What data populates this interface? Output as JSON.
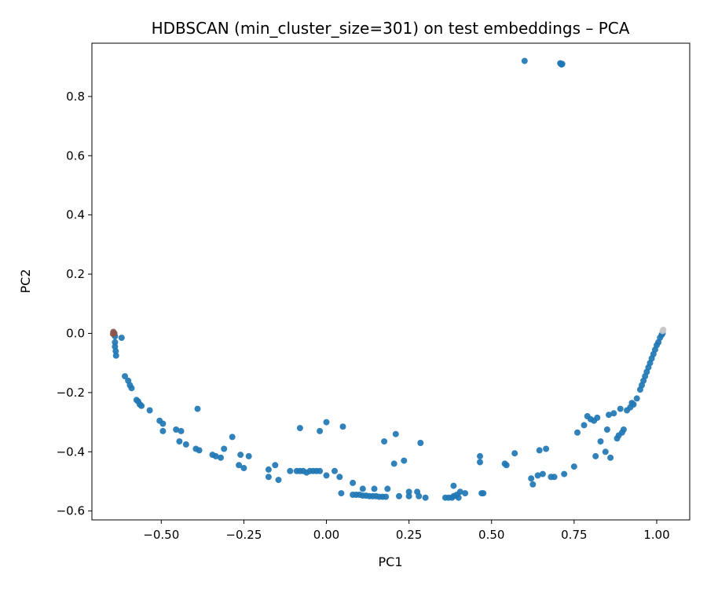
{
  "chart_data": {
    "type": "scatter",
    "title": "HDBSCAN (min_cluster_size=301) on test embeddings – PCA",
    "xlabel": "PC1",
    "ylabel": "PC2",
    "xlim": [
      -0.71,
      1.1
    ],
    "ylim": [
      -0.63,
      0.98
    ],
    "xticks": [
      -0.5,
      -0.25,
      0.0,
      0.25,
      0.5,
      0.75,
      1.0
    ],
    "xtick_labels": [
      "−0.50",
      "−0.25",
      "0.00",
      "0.25",
      "0.50",
      "0.75",
      "1.00"
    ],
    "yticks": [
      -0.6,
      -0.4,
      -0.2,
      0.0,
      0.2,
      0.4,
      0.6,
      0.8
    ],
    "ytick_labels": [
      "−0.6",
      "−0.4",
      "−0.2",
      "0.0",
      "0.2",
      "0.4",
      "0.6",
      "0.8"
    ],
    "grid": false,
    "legend": false,
    "series": [
      {
        "color": "#1f77b4",
        "points": [
          [
            0.6,
            0.92
          ],
          [
            0.71,
            0.91
          ],
          [
            0.712,
            0.908
          ],
          [
            0.708,
            0.912
          ],
          [
            0.714,
            0.91
          ],
          [
            -0.64,
            -0.01
          ],
          [
            -0.64,
            -0.03
          ],
          [
            -0.64,
            -0.045
          ],
          [
            -0.638,
            -0.06
          ],
          [
            -0.637,
            -0.075
          ],
          [
            -0.62,
            -0.015
          ],
          [
            -0.61,
            -0.145
          ],
          [
            -0.6,
            -0.16
          ],
          [
            -0.595,
            -0.175
          ],
          [
            -0.59,
            -0.185
          ],
          [
            -0.575,
            -0.225
          ],
          [
            -0.57,
            -0.23
          ],
          [
            -0.565,
            -0.24
          ],
          [
            -0.56,
            -0.245
          ],
          [
            -0.535,
            -0.26
          ],
          [
            -0.505,
            -0.295
          ],
          [
            -0.495,
            -0.305
          ],
          [
            -0.495,
            -0.33
          ],
          [
            -0.455,
            -0.325
          ],
          [
            -0.44,
            -0.33
          ],
          [
            -0.445,
            -0.365
          ],
          [
            -0.425,
            -0.375
          ],
          [
            -0.39,
            -0.255
          ],
          [
            -0.395,
            -0.39
          ],
          [
            -0.385,
            -0.395
          ],
          [
            -0.345,
            -0.41
          ],
          [
            -0.335,
            -0.415
          ],
          [
            -0.32,
            -0.42
          ],
          [
            -0.31,
            -0.39
          ],
          [
            -0.285,
            -0.35
          ],
          [
            -0.26,
            -0.41
          ],
          [
            -0.265,
            -0.445
          ],
          [
            -0.25,
            -0.455
          ],
          [
            -0.235,
            -0.415
          ],
          [
            -0.175,
            -0.46
          ],
          [
            -0.175,
            -0.485
          ],
          [
            -0.155,
            -0.445
          ],
          [
            -0.145,
            -0.495
          ],
          [
            -0.11,
            -0.465
          ],
          [
            -0.09,
            -0.465
          ],
          [
            -0.08,
            -0.465
          ],
          [
            -0.07,
            -0.465
          ],
          [
            -0.06,
            -0.47
          ],
          [
            -0.05,
            -0.465
          ],
          [
            -0.04,
            -0.465
          ],
          [
            -0.03,
            -0.465
          ],
          [
            -0.02,
            -0.465
          ],
          [
            -0.08,
            -0.32
          ],
          [
            -0.02,
            -0.33
          ],
          [
            0.0,
            -0.3
          ],
          [
            0.0,
            -0.48
          ],
          [
            0.025,
            -0.465
          ],
          [
            0.04,
            -0.485
          ],
          [
            0.05,
            -0.315
          ],
          [
            0.045,
            -0.54
          ],
          [
            0.08,
            -0.505
          ],
          [
            0.08,
            -0.545
          ],
          [
            0.09,
            -0.545
          ],
          [
            0.1,
            -0.545
          ],
          [
            0.11,
            -0.548
          ],
          [
            0.12,
            -0.548
          ],
          [
            0.13,
            -0.55
          ],
          [
            0.14,
            -0.55
          ],
          [
            0.15,
            -0.55
          ],
          [
            0.16,
            -0.552
          ],
          [
            0.17,
            -0.552
          ],
          [
            0.18,
            -0.552
          ],
          [
            0.11,
            -0.525
          ],
          [
            0.145,
            -0.525
          ],
          [
            0.175,
            -0.365
          ],
          [
            0.185,
            -0.525
          ],
          [
            0.205,
            -0.44
          ],
          [
            0.21,
            -0.34
          ],
          [
            0.22,
            -0.55
          ],
          [
            0.235,
            -0.43
          ],
          [
            0.25,
            -0.535
          ],
          [
            0.25,
            -0.55
          ],
          [
            0.275,
            -0.535
          ],
          [
            0.28,
            -0.55
          ],
          [
            0.285,
            -0.37
          ],
          [
            0.3,
            -0.555
          ],
          [
            0.36,
            -0.555
          ],
          [
            0.37,
            -0.555
          ],
          [
            0.38,
            -0.555
          ],
          [
            0.385,
            -0.55
          ],
          [
            0.395,
            -0.545
          ],
          [
            0.4,
            -0.555
          ],
          [
            0.405,
            -0.535
          ],
          [
            0.385,
            -0.515
          ],
          [
            0.42,
            -0.54
          ],
          [
            0.465,
            -0.415
          ],
          [
            0.47,
            -0.54
          ],
          [
            0.475,
            -0.54
          ],
          [
            0.465,
            -0.435
          ],
          [
            0.54,
            -0.44
          ],
          [
            0.545,
            -0.445
          ],
          [
            0.57,
            -0.405
          ],
          [
            0.62,
            -0.49
          ],
          [
            0.625,
            -0.51
          ],
          [
            0.64,
            -0.48
          ],
          [
            0.645,
            -0.395
          ],
          [
            0.655,
            -0.475
          ],
          [
            0.665,
            -0.39
          ],
          [
            0.68,
            -0.485
          ],
          [
            0.69,
            -0.485
          ],
          [
            0.72,
            -0.475
          ],
          [
            0.75,
            -0.45
          ],
          [
            0.76,
            -0.335
          ],
          [
            0.78,
            -0.31
          ],
          [
            0.79,
            -0.28
          ],
          [
            0.8,
            -0.29
          ],
          [
            0.81,
            -0.295
          ],
          [
            0.815,
            -0.415
          ],
          [
            0.82,
            -0.285
          ],
          [
            0.83,
            -0.365
          ],
          [
            0.845,
            -0.4
          ],
          [
            0.85,
            -0.325
          ],
          [
            0.855,
            -0.275
          ],
          [
            0.86,
            -0.42
          ],
          [
            0.87,
            -0.27
          ],
          [
            0.88,
            -0.355
          ],
          [
            0.885,
            -0.345
          ],
          [
            0.89,
            -0.255
          ],
          [
            0.895,
            -0.335
          ],
          [
            0.9,
            -0.325
          ],
          [
            0.91,
            -0.26
          ],
          [
            0.92,
            -0.25
          ],
          [
            0.925,
            -0.235
          ],
          [
            0.93,
            -0.24
          ],
          [
            0.94,
            -0.22
          ],
          [
            0.95,
            -0.19
          ],
          [
            0.955,
            -0.175
          ],
          [
            0.96,
            -0.16
          ],
          [
            0.965,
            -0.145
          ],
          [
            0.97,
            -0.13
          ],
          [
            0.975,
            -0.115
          ],
          [
            0.98,
            -0.1
          ],
          [
            0.985,
            -0.085
          ],
          [
            0.99,
            -0.07
          ],
          [
            0.995,
            -0.055
          ],
          [
            1.0,
            -0.04
          ],
          [
            1.005,
            -0.03
          ],
          [
            1.01,
            -0.015
          ],
          [
            1.015,
            -0.005
          ],
          [
            1.018,
            0.0
          ]
        ]
      },
      {
        "color": "#8c564b",
        "points": [
          [
            -0.645,
            0.005
          ],
          [
            -0.642,
            0.0
          ],
          [
            -0.646,
            -0.002
          ]
        ]
      },
      {
        "color": "#c7c7c7",
        "points": [
          [
            1.018,
            0.008
          ],
          [
            1.02,
            0.012
          ]
        ]
      }
    ]
  }
}
